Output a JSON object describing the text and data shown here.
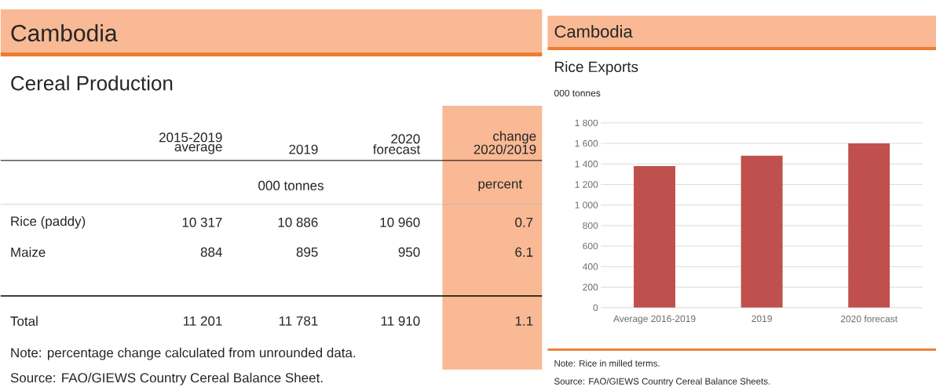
{
  "chart_data": [
    {
      "type": "other",
      "title": "Cambodia",
      "subtitle": "Cereal Production",
      "categories": [
        "2015-2019 average",
        "2019",
        "2020 forecast",
        "change 2020/2019"
      ],
      "y_categories": [
        "Rice (paddy)",
        "Maize",
        "Total"
      ],
      "cell_labels": [
        [
          "10 317",
          "10 886",
          "10 960",
          "0.7"
        ],
        [
          "884",
          "895",
          "950",
          "6.1"
        ],
        [
          "11 201",
          "11 781",
          "11 910",
          "1.1"
        ]
      ],
      "annotations": [
        "000 tonnes",
        "percent",
        "Note: percentage change calculated from unrounded data.",
        "Source: FAO/GIEWS Country Cereal Balance Sheet."
      ]
    },
    {
      "type": "bar",
      "title": "Cambodia",
      "subtitle": "Rice Exports",
      "ylabel": "000 tonnes",
      "categories": [
        "Average 2016-2019",
        "2019",
        "2020 forecast"
      ],
      "values": [
        1380,
        1480,
        1600
      ],
      "color": "#c0504d",
      "ylim": [
        0,
        1800
      ],
      "yticks": [
        0,
        200,
        400,
        600,
        800,
        {
          "value": 1000,
          "label": "1 000"
        },
        {
          "value": 1200,
          "label": "1 200"
        },
        {
          "value": 1400,
          "label": "1 400"
        },
        {
          "value": 1600,
          "label": "1 600"
        },
        {
          "value": 1800,
          "label": "1 800"
        }
      ],
      "grid": "y",
      "annotations": [
        "Note: Rice in milled terms.",
        "Source: FAO/GIEWS Country Cereal Balance Sheets."
      ]
    }
  ]
}
